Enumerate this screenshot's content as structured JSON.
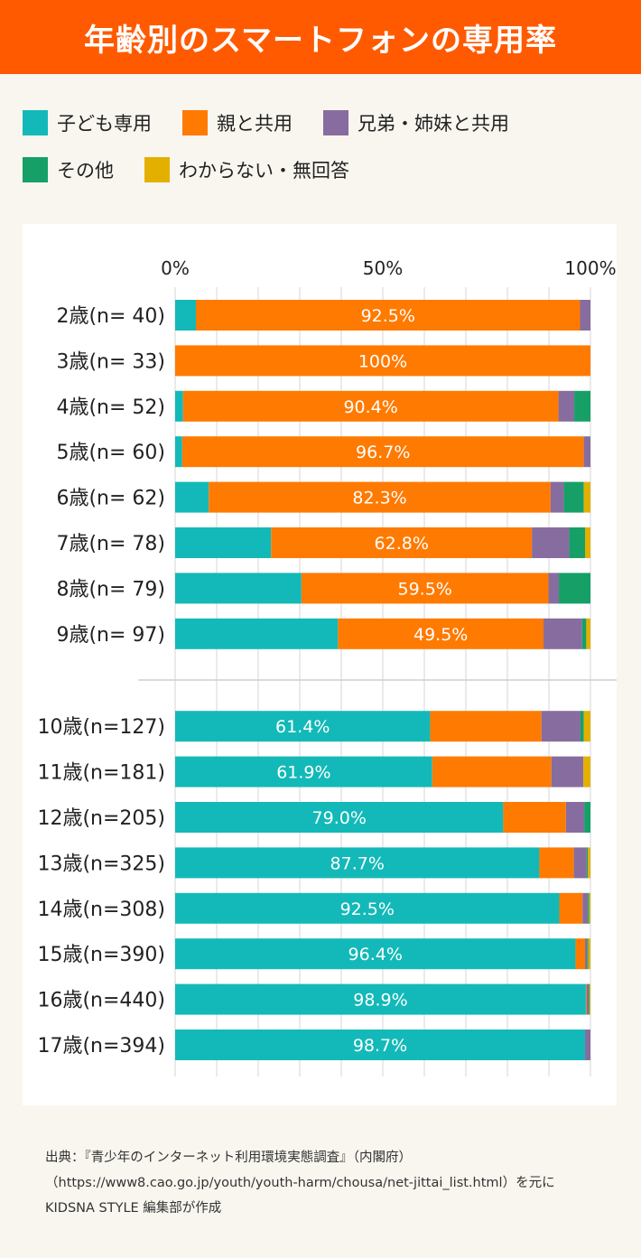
{
  "header": {
    "title": "年齢別のスマートフォンの専用率"
  },
  "colors": {
    "header_bg": "#ff5a00",
    "own": "#13b9b8",
    "parent": "#ff7a00",
    "sibling": "#876d9f",
    "other": "#16a067",
    "unknown": "#e3b000"
  },
  "legend": [
    {
      "key": "own",
      "label": "子ども専用",
      "color": "#13b9b8"
    },
    {
      "key": "parent",
      "label": "親と共用",
      "color": "#ff7a00"
    },
    {
      "key": "sibling",
      "label": "兄弟・姉妹と共用",
      "color": "#876d9f"
    },
    {
      "key": "other",
      "label": "その他",
      "color": "#16a067"
    },
    {
      "key": "unknown",
      "label": "わからない・無回答",
      "color": "#e3b000"
    }
  ],
  "chart_data": {
    "type": "bar",
    "orientation": "horizontal",
    "stacked": true,
    "title": "年齢別のスマートフォンの専用率",
    "xlim": [
      0,
      100
    ],
    "x_ticks": [
      "0%",
      "50%",
      "100%"
    ],
    "grid": true,
    "categories": [
      "2歳(n= 40)",
      "3歳(n= 33)",
      "4歳(n= 52)",
      "5歳(n= 60)",
      "6歳(n= 62)",
      "7歳(n= 78)",
      "8歳(n= 79)",
      "9歳(n= 97)",
      "10歳(n=127)",
      "11歳(n=181)",
      "12歳(n=205)",
      "13歳(n=325)",
      "14歳(n=308)",
      "15歳(n=390)",
      "16歳(n=440)",
      "17歳(n=394)"
    ],
    "group_break_after_index": 7,
    "series": [
      {
        "name": "子ども専用",
        "key": "own",
        "values": [
          5.0,
          0,
          1.9,
          1.7,
          8.1,
          23.1,
          30.4,
          39.2,
          61.4,
          61.9,
          79.0,
          87.7,
          92.5,
          96.4,
          98.9,
          98.7
        ]
      },
      {
        "name": "親と共用",
        "key": "parent",
        "values": [
          92.5,
          100,
          90.4,
          96.7,
          82.3,
          62.8,
          59.5,
          49.5,
          26.8,
          28.7,
          15.1,
          8.3,
          5.6,
          2.3,
          0.2,
          0
        ]
      },
      {
        "name": "兄弟・姉妹と共用",
        "key": "sibling",
        "values": [
          2.5,
          0,
          3.8,
          1.6,
          3.2,
          9.0,
          2.5,
          9.3,
          9.4,
          7.7,
          4.4,
          3.1,
          1.3,
          0.5,
          0.5,
          1.3
        ]
      },
      {
        "name": "その他",
        "key": "other",
        "values": [
          0,
          0,
          3.9,
          0,
          4.8,
          3.8,
          7.6,
          1.0,
          0.8,
          0,
          1.5,
          0.3,
          0.3,
          0.3,
          0.2,
          0
        ]
      },
      {
        "name": "わからない・無回答",
        "key": "unknown",
        "values": [
          0,
          0,
          0,
          0,
          1.6,
          1.3,
          0,
          1.0,
          1.6,
          1.7,
          0,
          0.6,
          0.3,
          0.5,
          0.2,
          0
        ]
      }
    ],
    "data_labels": [
      {
        "row": 0,
        "series": "parent",
        "text": "92.5%"
      },
      {
        "row": 1,
        "series": "parent",
        "text": "100%"
      },
      {
        "row": 2,
        "series": "parent",
        "text": "90.4%"
      },
      {
        "row": 3,
        "series": "parent",
        "text": "96.7%"
      },
      {
        "row": 4,
        "series": "parent",
        "text": "82.3%"
      },
      {
        "row": 5,
        "series": "parent",
        "text": "62.8%"
      },
      {
        "row": 6,
        "series": "parent",
        "text": "59.5%"
      },
      {
        "row": 7,
        "series": "parent",
        "text": "49.5%"
      },
      {
        "row": 8,
        "series": "own",
        "text": "61.4%"
      },
      {
        "row": 9,
        "series": "own",
        "text": "61.9%"
      },
      {
        "row": 10,
        "series": "own",
        "text": "79.0%"
      },
      {
        "row": 11,
        "series": "own",
        "text": "87.7%"
      },
      {
        "row": 12,
        "series": "own",
        "text": "92.5%"
      },
      {
        "row": 13,
        "series": "own",
        "text": "96.4%"
      },
      {
        "row": 14,
        "series": "own",
        "text": "98.9%"
      },
      {
        "row": 15,
        "series": "own",
        "text": "98.7%"
      }
    ]
  },
  "source": {
    "line1": "出典：『青少年のインターネット利用環境実態調査』（内閣府）",
    "line2": "（https://www8.cao.go.jp/youth/youth-harm/chousa/net-jittai_list.html）を元に",
    "line3": "KIDSNA STYLE 編集部が作成"
  }
}
